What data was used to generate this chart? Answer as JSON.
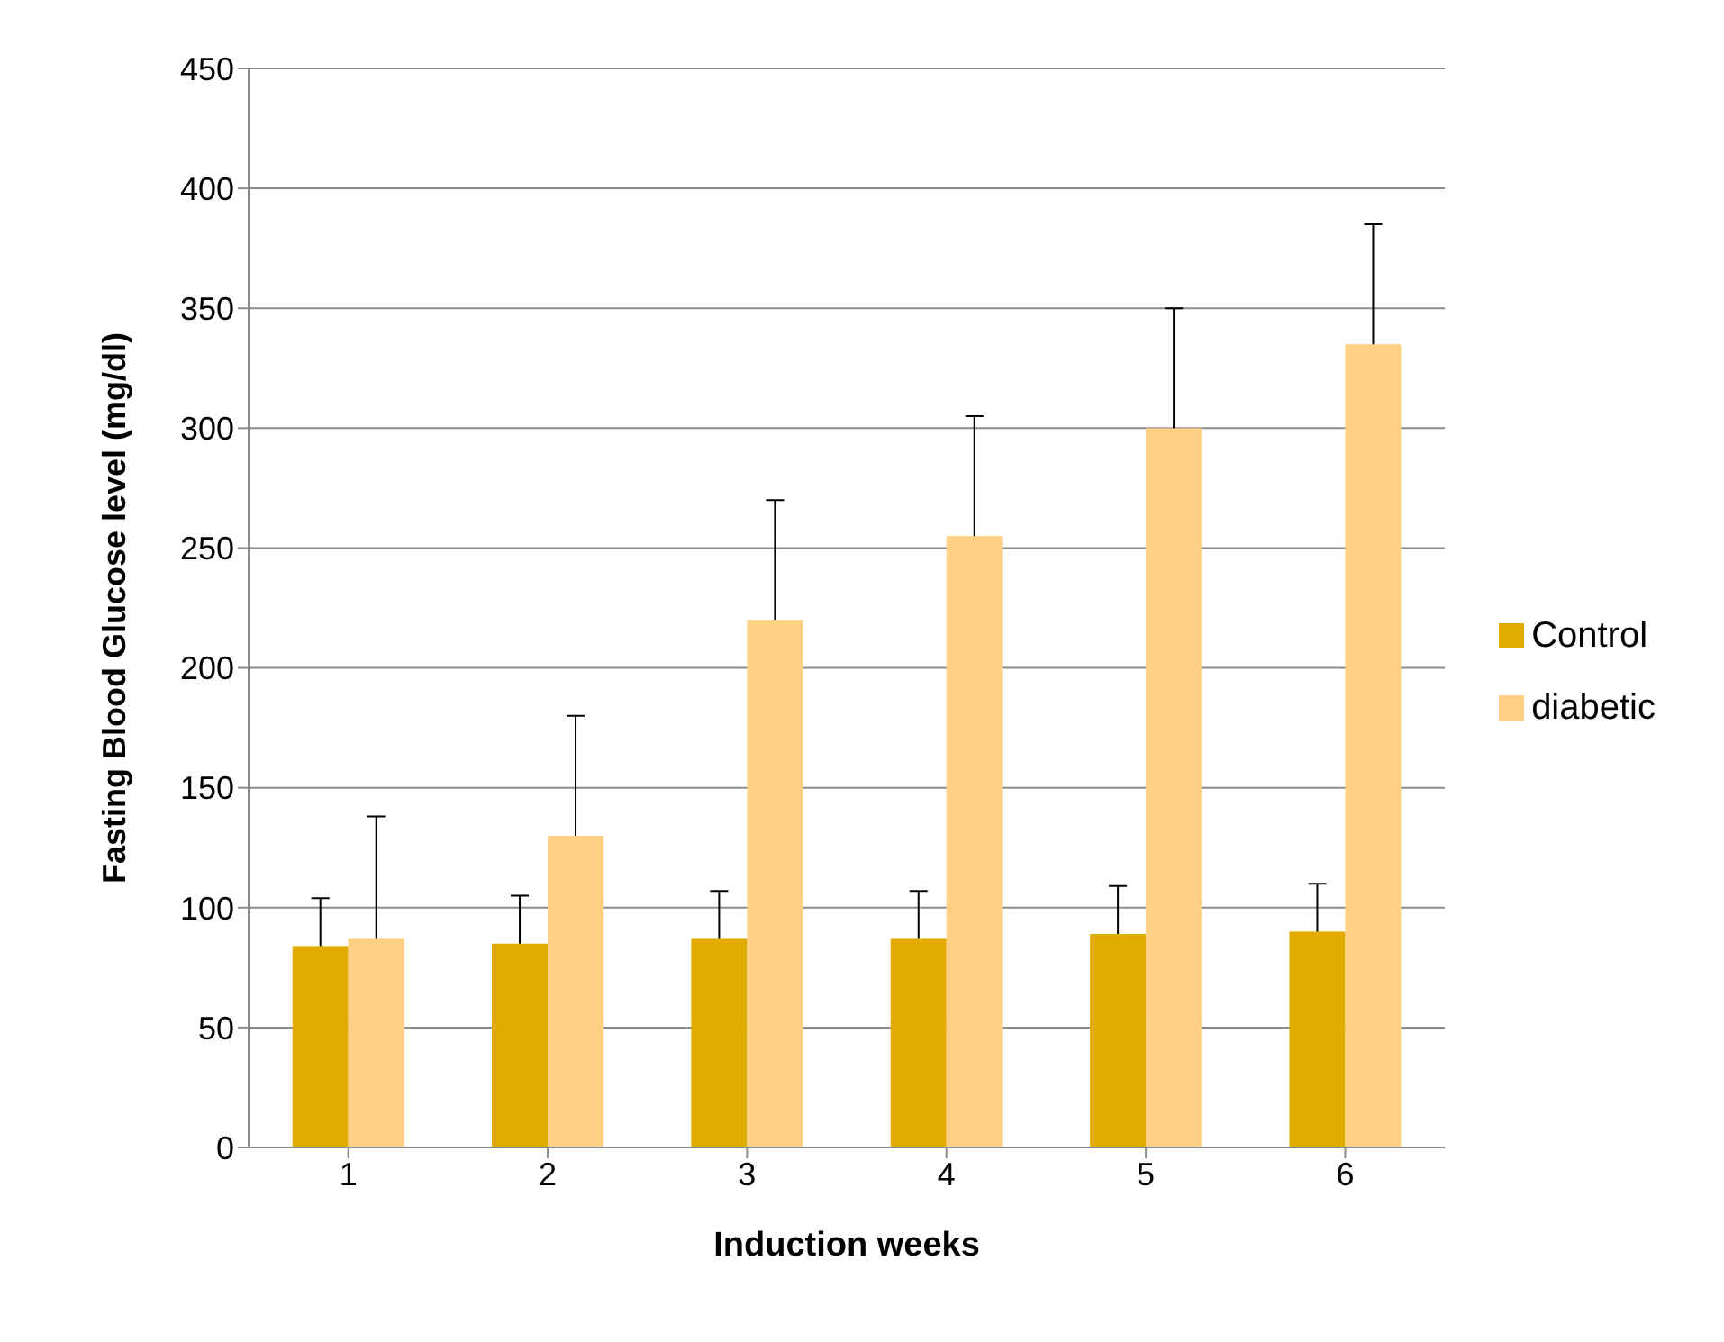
{
  "chart_data": {
    "type": "bar",
    "xlabel": "Induction weeks",
    "ylabel": "Fasting Blood Glucose level (mg/dl)",
    "categories": [
      "1",
      "2",
      "3",
      "4",
      "5",
      "6"
    ],
    "series": [
      {
        "name": "Control",
        "color": "#e2ab00",
        "values": [
          84,
          85,
          87,
          87,
          89,
          90
        ],
        "errors": [
          [
            84,
            104
          ],
          [
            85,
            105
          ],
          [
            87,
            107
          ],
          [
            87,
            107
          ],
          [
            89,
            109
          ],
          [
            90,
            110
          ]
        ]
      },
      {
        "name": "diabetic",
        "color": "#fed083",
        "values": [
          87,
          130,
          220,
          255,
          300,
          335
        ],
        "errors": [
          [
            87,
            138
          ],
          [
            130,
            180
          ],
          [
            220,
            270
          ],
          [
            255,
            305
          ],
          [
            300,
            350
          ],
          [
            335,
            385
          ]
        ]
      }
    ],
    "ylim": [
      0,
      450
    ],
    "yticks": [
      0,
      50,
      100,
      150,
      200,
      250,
      300,
      350,
      400,
      450
    ],
    "grid": "y",
    "legend": "right"
  }
}
